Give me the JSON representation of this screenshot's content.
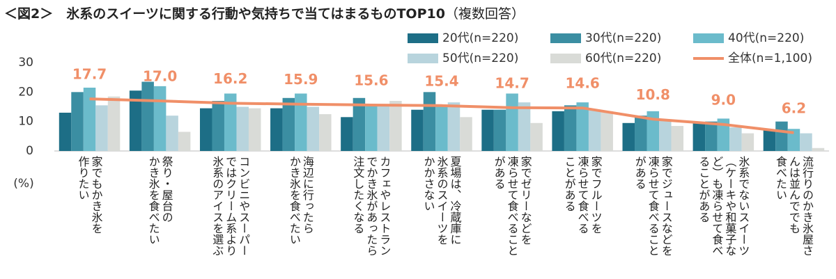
{
  "chart_data": {
    "type": "bar_line",
    "title": "＜図2＞　氷系のスイーツに関する行動や気持ちで当てはまるものTOP10",
    "note": "（複数回答）",
    "y_label": "(%)",
    "categories": [
      "家でもかき氷を\n作りたい",
      "祭り・屋台の\nかき氷を食べたい",
      "コンビニやスーパー\nではクリーム系より\n氷系のアイスを選ぶ",
      "海辺に行ったら\nかき氷を食べたい",
      "カフェやレストラン\nでかき氷があったら\n注文したくなる",
      "夏場は、冷蔵庫に\n氷系のスイーツを\nかかさない",
      "家でゼリーなどを\n凍らせて食べること\nがある",
      "家でフルーツを\n凍らせて食べる\nことがある",
      "家でジュースなどを\n凍らせて食べること\nがある",
      "氷系でないスイーツ\n（ケーキや和菓子な\nど）も凍らせて食べ\nることがある",
      "流行りのかき氷屋さ\nんは並んででも\n食べたい"
    ],
    "series": [
      {
        "name": "20代(n=220)",
        "color": "#1d6e86",
        "values": [
          13,
          20.5,
          14.5,
          14.5,
          11.5,
          14,
          14,
          13.5,
          9.5,
          9.5,
          7
        ]
      },
      {
        "name": "30代(n=220)",
        "color": "#3b8ea2",
        "values": [
          20,
          23.5,
          17,
          18,
          18,
          20,
          14,
          15.5,
          12,
          10,
          10
        ]
      },
      {
        "name": "40代(n=220)",
        "color": "#6bbbcb",
        "values": [
          21.5,
          22,
          19.5,
          19.5,
          15.5,
          15.5,
          19.5,
          16.5,
          13.5,
          11,
          7.5
        ]
      },
      {
        "name": "50代(n=220)",
        "color": "#b8d4dd",
        "values": [
          15.5,
          12,
          15,
          15,
          15.5,
          16.5,
          16.5,
          14,
          10.5,
          8,
          6
        ]
      },
      {
        "name": "60代(n=220)",
        "color": "#d9dbd7",
        "values": [
          18.5,
          6.5,
          14.5,
          12.5,
          17,
          11.5,
          9.5,
          13.5,
          8.5,
          6,
          1
        ]
      },
      {
        "name": "全体(n=1,100)",
        "color": "#f08f68",
        "type": "line",
        "values": [
          17.7,
          17.0,
          16.2,
          15.9,
          15.6,
          15.4,
          14.7,
          14.6,
          10.8,
          9.0,
          6.2
        ],
        "value_labels": [
          "17.7",
          "17.0",
          "16.2",
          "15.9",
          "15.6",
          "15.4",
          "14.7",
          "14.6",
          "10.8",
          "9.0",
          "6.2"
        ]
      }
    ],
    "ylim": [
      0,
      30
    ],
    "yticks": [
      0,
      10,
      20,
      30
    ],
    "grid": false,
    "legend": "top-right"
  }
}
